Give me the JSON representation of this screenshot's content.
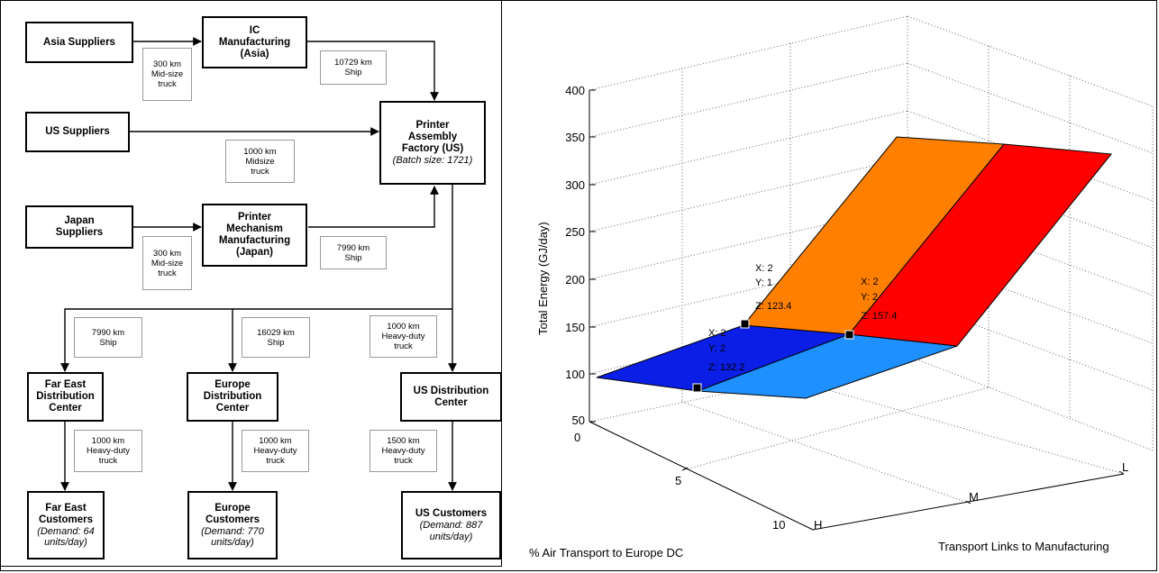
{
  "flowchart": {
    "nodes": {
      "asia_suppliers": {
        "title": "Asia Suppliers"
      },
      "ic_manufacturing": {
        "title": "IC Manufacturing (Asia)"
      },
      "us_suppliers": {
        "title": "US Suppliers"
      },
      "printer_assembly": {
        "title": "Printer Assembly Factory (US)",
        "note": "(Batch size: 1721)"
      },
      "japan_suppliers": {
        "title": "Japan Suppliers"
      },
      "printer_mechanism": {
        "title": "Printer Mechanism Manufacturing (Japan)"
      },
      "far_east_dc": {
        "title": "Far East Distribution Center"
      },
      "europe_dc": {
        "title": "Europe Distribution Center"
      },
      "us_dc": {
        "title": "US Distribution Center"
      },
      "far_east_customers": {
        "title": "Far East Customers",
        "note": "(Demand: 64 units/day)"
      },
      "europe_customers": {
        "title": "Europe Customers",
        "note": "(Demand: 770 units/day)"
      },
      "us_customers": {
        "title": "US Customers",
        "note": "(Demand: 887 units/day)"
      }
    },
    "links": {
      "asia_to_ic": "300 km Mid-size truck",
      "ic_to_assembly": "10729 km Ship",
      "us_to_assembly": "1000 km Midsize truck",
      "japan_to_mechanism": "300 km Mid-size truck",
      "mechanism_to_assembly": "7990 km Ship",
      "to_far_east_dc": "7990 km Ship",
      "to_europe_dc": "16029 km Ship",
      "to_us_dc": "1000 km Heavy-duty truck",
      "far_east_dc_to_customers": "1000 km Heavy-duty truck",
      "europe_dc_to_customers": "1000 km Heavy-duty truck",
      "us_dc_to_customers": "1500 km Heavy-duty truck"
    }
  },
  "surface_plot": {
    "z_axis": {
      "label": "Total Energy (GJ/day)",
      "ticks": [
        "50",
        "100",
        "150",
        "200",
        "250",
        "300",
        "350",
        "400"
      ]
    },
    "x_axis": {
      "label": "% Air Transport to Europe DC",
      "ticks": [
        "0",
        "5",
        "10"
      ]
    },
    "y_axis": {
      "label": "Transport Links to Manufacturing",
      "ticks": [
        "H",
        "M",
        "L"
      ]
    },
    "datatips": [
      {
        "x": "X: 2",
        "y": "Y: 1",
        "z": "Z: 123.4"
      },
      {
        "x": "X: 2",
        "y": "Y: 2",
        "z": "Z: 157.4"
      },
      {
        "x": "X: 2",
        "y": "Y: 2",
        "z": "Z: 132.2"
      }
    ],
    "colors": {
      "dark_blue": "#0a1ee6",
      "light_blue": "#1e90ff",
      "orange": "#ff8000",
      "red": "#ff0000"
    }
  }
}
